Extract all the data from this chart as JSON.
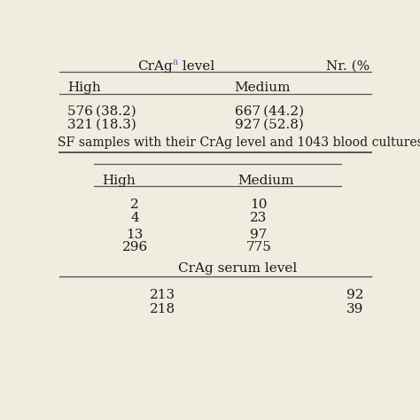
{
  "bg_color": "#f0ece0",
  "title_crag": "CrAg",
  "title_super": "a",
  "title_level": " level",
  "title_nr": "Nr. (%",
  "header1": [
    "High",
    "Medium"
  ],
  "data_rows_top": [
    [
      "576 (38.2)",
      "667 (44.2)"
    ],
    [
      "321 (18.3)",
      "927 (52.8)"
    ]
  ],
  "middle_text": "SF samples with their CrAg level and 1043 blood cultures",
  "header2": [
    "High",
    "Medium"
  ],
  "data_rows_mid": [
    [
      "2",
      "10"
    ],
    [
      "4",
      "23"
    ],
    [
      "13",
      "97"
    ],
    [
      "296",
      "775"
    ]
  ],
  "subheader_text": "CrAg serum level",
  "data_rows_bot": [
    [
      "213",
      "92"
    ],
    [
      "218",
      "39"
    ]
  ],
  "font_family": "DejaVu Serif",
  "font_size": 11.0,
  "super_color": "#4472c4",
  "text_color": "#1a1a1a",
  "line_color": "#555555"
}
